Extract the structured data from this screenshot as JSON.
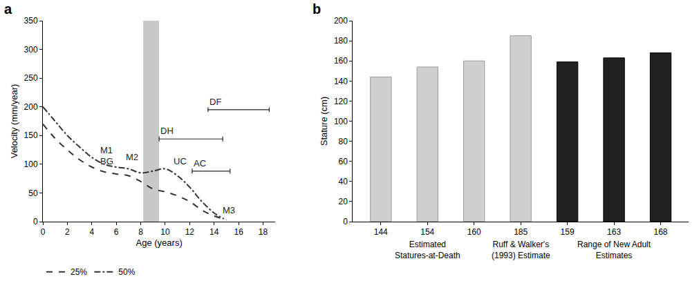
{
  "chart_data": [
    {
      "panel": "a",
      "type": "line",
      "x_label": "Age (years)",
      "y_label": "Velocity (mm/year)",
      "xlim": [
        0,
        19
      ],
      "xticks": [
        0,
        2,
        4,
        6,
        8,
        10,
        12,
        14,
        16,
        18
      ],
      "ylim": [
        0,
        350
      ],
      "yticks": [
        0,
        50,
        100,
        150,
        200,
        250,
        300,
        350
      ],
      "grid": false,
      "legend": "bottom",
      "series": [
        {
          "name": "25%",
          "color": "#333333",
          "line_style": "dash",
          "x": [
            0,
            1,
            2,
            3,
            4,
            5,
            6,
            7,
            8,
            9,
            10,
            11,
            12,
            13,
            14,
            15
          ],
          "values": [
            170,
            145,
            125,
            108,
            95,
            87,
            83,
            80,
            70,
            57,
            52,
            45,
            35,
            20,
            10,
            3
          ]
        },
        {
          "name": "50%",
          "color": "#333333",
          "line_style": "dashdot",
          "x": [
            0,
            1,
            2,
            3,
            4,
            5,
            6,
            7,
            8,
            9,
            10,
            11,
            12,
            13,
            14,
            14.8
          ],
          "values": [
            200,
            175,
            150,
            130,
            112,
            100,
            95,
            92,
            85,
            88,
            92,
            80,
            60,
            35,
            15,
            5
          ]
        }
      ],
      "shaded_band": {
        "start": 8.2,
        "end": 9.5,
        "color": "#c8c8c8"
      },
      "ranges": [
        {
          "label": "DH",
          "start": 9.5,
          "end": 14.7,
          "y": 144
        },
        {
          "label": "AC",
          "start": 12.2,
          "end": 15.3,
          "y": 88
        },
        {
          "label": "DF",
          "start": 13.5,
          "end": 18.5,
          "y": 195
        }
      ],
      "annotations": [
        {
          "text": "M1",
          "x": 5.2,
          "y": 125
        },
        {
          "text": "BG",
          "x": 5.2,
          "y": 105
        },
        {
          "text": "M2",
          "x": 7.3,
          "y": 112
        },
        {
          "text": "UC",
          "x": 11.2,
          "y": 105
        },
        {
          "text": "M3",
          "x": 15.2,
          "y": 20
        }
      ]
    },
    {
      "panel": "b",
      "type": "bar",
      "y_label": "Stature (cm)",
      "categories": [
        "144",
        "154",
        "160",
        "185",
        "159",
        "163",
        "168"
      ],
      "values": [
        144,
        154,
        160,
        185,
        159,
        163,
        168
      ],
      "colors": [
        "#cfcfcf",
        "#cfcfcf",
        "#cfcfcf",
        "#cfcfcf",
        "#222222",
        "#222222",
        "#222222"
      ],
      "ylim": [
        0,
        200
      ],
      "yticks": [
        0,
        20,
        40,
        60,
        80,
        100,
        120,
        140,
        160,
        180,
        200
      ],
      "grid": false,
      "groups": [
        {
          "label": "Estimated Statures-at-Death",
          "first": 0,
          "last": 2
        },
        {
          "label": "Ruff & Walker's (1993) Estimate",
          "first": 3,
          "last": 3
        },
        {
          "label": "Range of New Adult Estimates",
          "first": 4,
          "last": 6
        }
      ]
    }
  ]
}
